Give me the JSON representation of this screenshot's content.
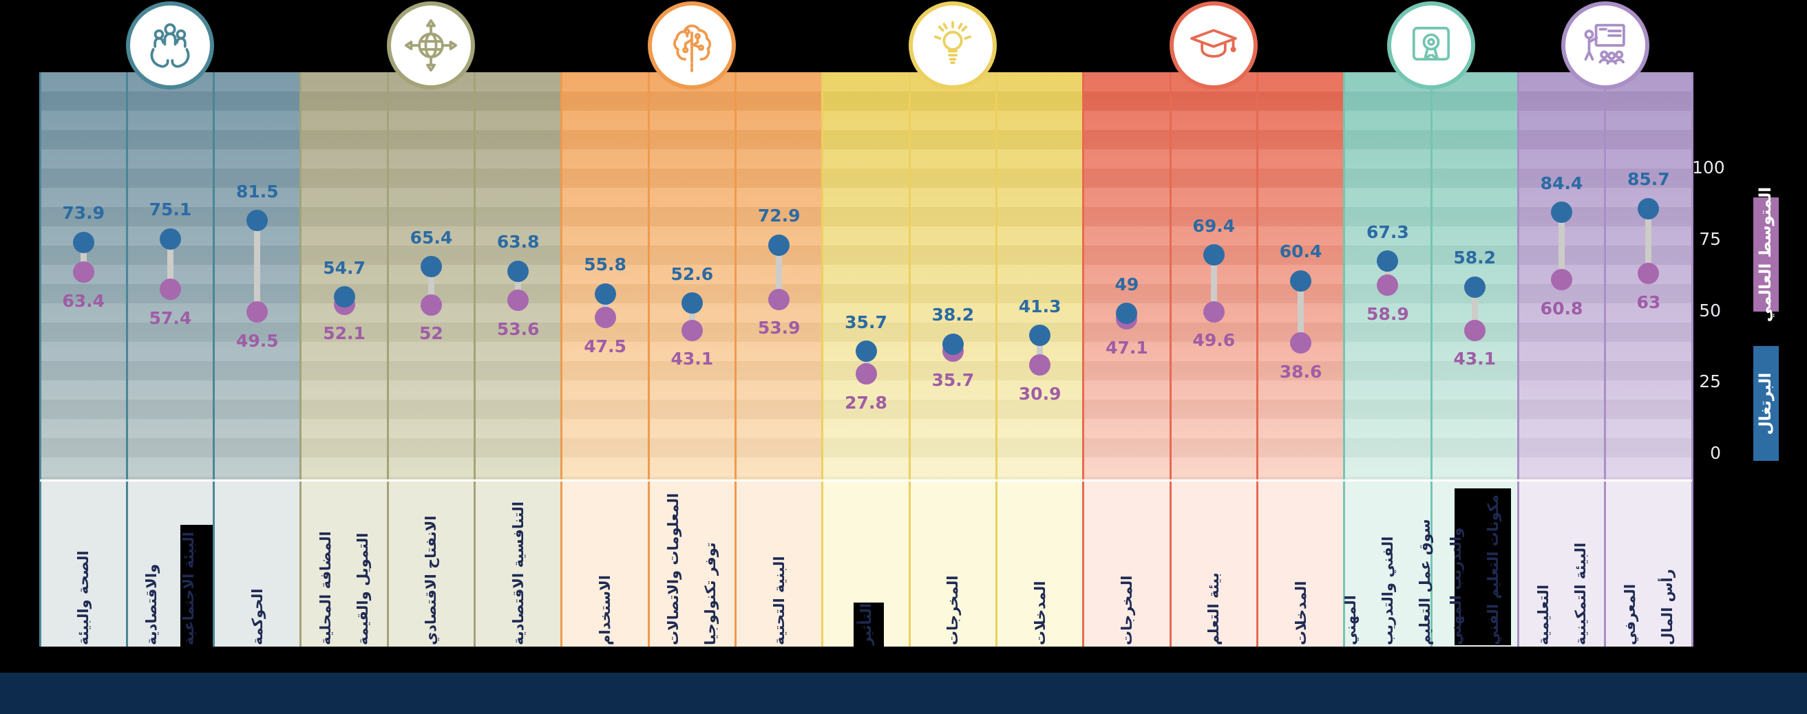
{
  "chart_data": {
    "type": "dumbbell",
    "ylim": [
      0,
      100
    ],
    "yticks": [
      100,
      75,
      50,
      25,
      0
    ],
    "grid": false,
    "legend_position": "right",
    "series_meta": {
      "portugal": {
        "label": "البرتغال",
        "color": "#2e6da4"
      },
      "world_avg": {
        "label": "المتوسط العالمي",
        "color": "#a671ad"
      }
    },
    "groups": [
      {
        "icon": "people-in-hands-icon",
        "accent": "#4a8696",
        "bg_top": "#6f91a2",
        "bg_bottom": "#bcc9c9",
        "pale": "#e4e9ea",
        "columns": [
          {
            "label": "الصحة والبيئة",
            "lines": [
              "الصحة والبيئة"
            ],
            "portugal": 73.9,
            "world": 63.4,
            "highlighted": false
          },
          {
            "label": "البيئة الاجتماعية والاقتصادية",
            "lines": [
              "البيئة الاجتماعية",
              "والاقتصادية"
            ],
            "portugal": 75.1,
            "world": 57.4,
            "highlighted": true
          },
          {
            "label": "الحوكمة",
            "lines": [
              "الحوكمة"
            ],
            "portugal": 81.5,
            "world": 49.5,
            "highlighted": false
          }
        ]
      },
      {
        "icon": "globe-arrows-icon",
        "accent": "#a3a378",
        "bg_top": "#a7a384",
        "bg_bottom": "#dddcc2",
        "pale": "#eaeadb",
        "columns": [
          {
            "label": "التمويل والقيمة المضافة المحلية",
            "lines": [
              "التمويل والقيمة",
              "المضافة المحلية"
            ],
            "portugal": 54.7,
            "world": 52.1,
            "highlighted": false
          },
          {
            "label": "الانفتاح الاقتصادي",
            "lines": [
              "الانفتاح الاقتصادي"
            ],
            "portugal": 65.4,
            "world": 52,
            "highlighted": false
          },
          {
            "label": "التنافسية الاقتصادية",
            "lines": [
              "التنافسية الاقتصادية"
            ],
            "portugal": 63.8,
            "world": 53.6,
            "highlighted": false
          }
        ]
      },
      {
        "icon": "brain-circuit-icon",
        "accent": "#ef9a4d",
        "bg_top": "#f2a259",
        "bg_bottom": "#fbe0bb",
        "pale": "#fdeedd",
        "columns": [
          {
            "label": "الاستخدام",
            "lines": [
              "الاستخدام"
            ],
            "portugal": 55.8,
            "world": 47.5,
            "highlighted": false
          },
          {
            "label": "توفر تكنولوجيا المعلومات والاتصالات",
            "lines": [
              "توفر تكنولوجيا",
              "المعلومات والاتصالات"
            ],
            "portugal": 52.6,
            "world": 43.1,
            "highlighted": false
          },
          {
            "label": "البنية التحتية",
            "lines": [
              "البنية التحتية"
            ],
            "portugal": 72.9,
            "world": 53.9,
            "highlighted": false
          }
        ]
      },
      {
        "icon": "lightbulb-icon",
        "accent": "#ecd05e",
        "bg_top": "#eacf58",
        "bg_bottom": "#f9f2ca",
        "pale": "#fdf9dd",
        "columns": [
          {
            "label": "التأثير",
            "lines": [
              "التأثير"
            ],
            "portugal": 35.7,
            "world": 27.8,
            "highlighted": true
          },
          {
            "label": "المخرجات",
            "lines": [
              "المخرجات"
            ],
            "portugal": 38.2,
            "world": 35.7,
            "highlighted": false
          },
          {
            "label": "المدخلات",
            "lines": [
              "المدخلات"
            ],
            "portugal": 41.3,
            "world": 30.9,
            "highlighted": false
          }
        ]
      },
      {
        "icon": "graduation-cap-icon",
        "accent": "#e66a52",
        "bg_top": "#e7654e",
        "bg_bottom": "#fad3c5",
        "pale": "#fdebe4",
        "columns": [
          {
            "label": "المخرجات",
            "lines": [
              "المخرجات"
            ],
            "portugal": 49,
            "world": 47.1,
            "highlighted": false
          },
          {
            "label": "بيئة التعلم",
            "lines": [
              "بيئة التعلم"
            ],
            "portugal": 69.4,
            "world": 49.6,
            "highlighted": false
          },
          {
            "label": "المدخلات",
            "lines": [
              "المدخلات"
            ],
            "portugal": 60.4,
            "world": 38.6,
            "highlighted": false
          }
        ]
      },
      {
        "icon": "certificate-badge-icon",
        "accent": "#74c5b2",
        "bg_top": "#83c8b9",
        "bg_bottom": "#d9efe7",
        "pale": "#e6f4ef",
        "columns": [
          {
            "label": "سوق عمل التعليم الفني والتدريب المهني",
            "lines": [
              "سوق عمل التعليم",
              "الفني والتدريب",
              "المهني"
            ],
            "portugal": 67.3,
            "world": 58.9,
            "highlighted": false
          },
          {
            "label": "مكونات التعليم الفني والتدريب المهني",
            "lines": [
              "مكونات التعليم الفني",
              "والتدريب المهني"
            ],
            "portugal": 58.2,
            "world": 43.1,
            "highlighted": true
          }
        ]
      },
      {
        "icon": "classroom-presentation-icon",
        "accent": "#a98fc6",
        "bg_top": "#a891c5",
        "bg_bottom": "#ded2e9",
        "pale": "#efe9f4",
        "columns": [
          {
            "label": "البيئة التمكينية التعليمية",
            "lines": [
              "البيئة التمكينية",
              "التعليمية"
            ],
            "portugal": 84.4,
            "world": 60.8,
            "highlighted": false
          },
          {
            "label": "رأس المال المعرفي",
            "lines": [
              "رأس المال",
              "المعرفي"
            ],
            "portugal": 85.7,
            "world": 63,
            "highlighted": false
          }
        ]
      }
    ]
  },
  "legend": {
    "world_avg_label": "المتوسط العالمي",
    "portugal_label": "البرتغال"
  },
  "colors": {
    "portugal_dot": "#2e6da4",
    "world_dot": "#a768ae",
    "portugal_value_text": "#2b6ba3",
    "world_value_text": "#9f5da6",
    "category_text": "#1f2a52",
    "connector": "#cdccc8",
    "footer": "#0d2c4d",
    "legend_world_bg": "#a671ad",
    "legend_portugal_bg": "#2e6da4"
  }
}
